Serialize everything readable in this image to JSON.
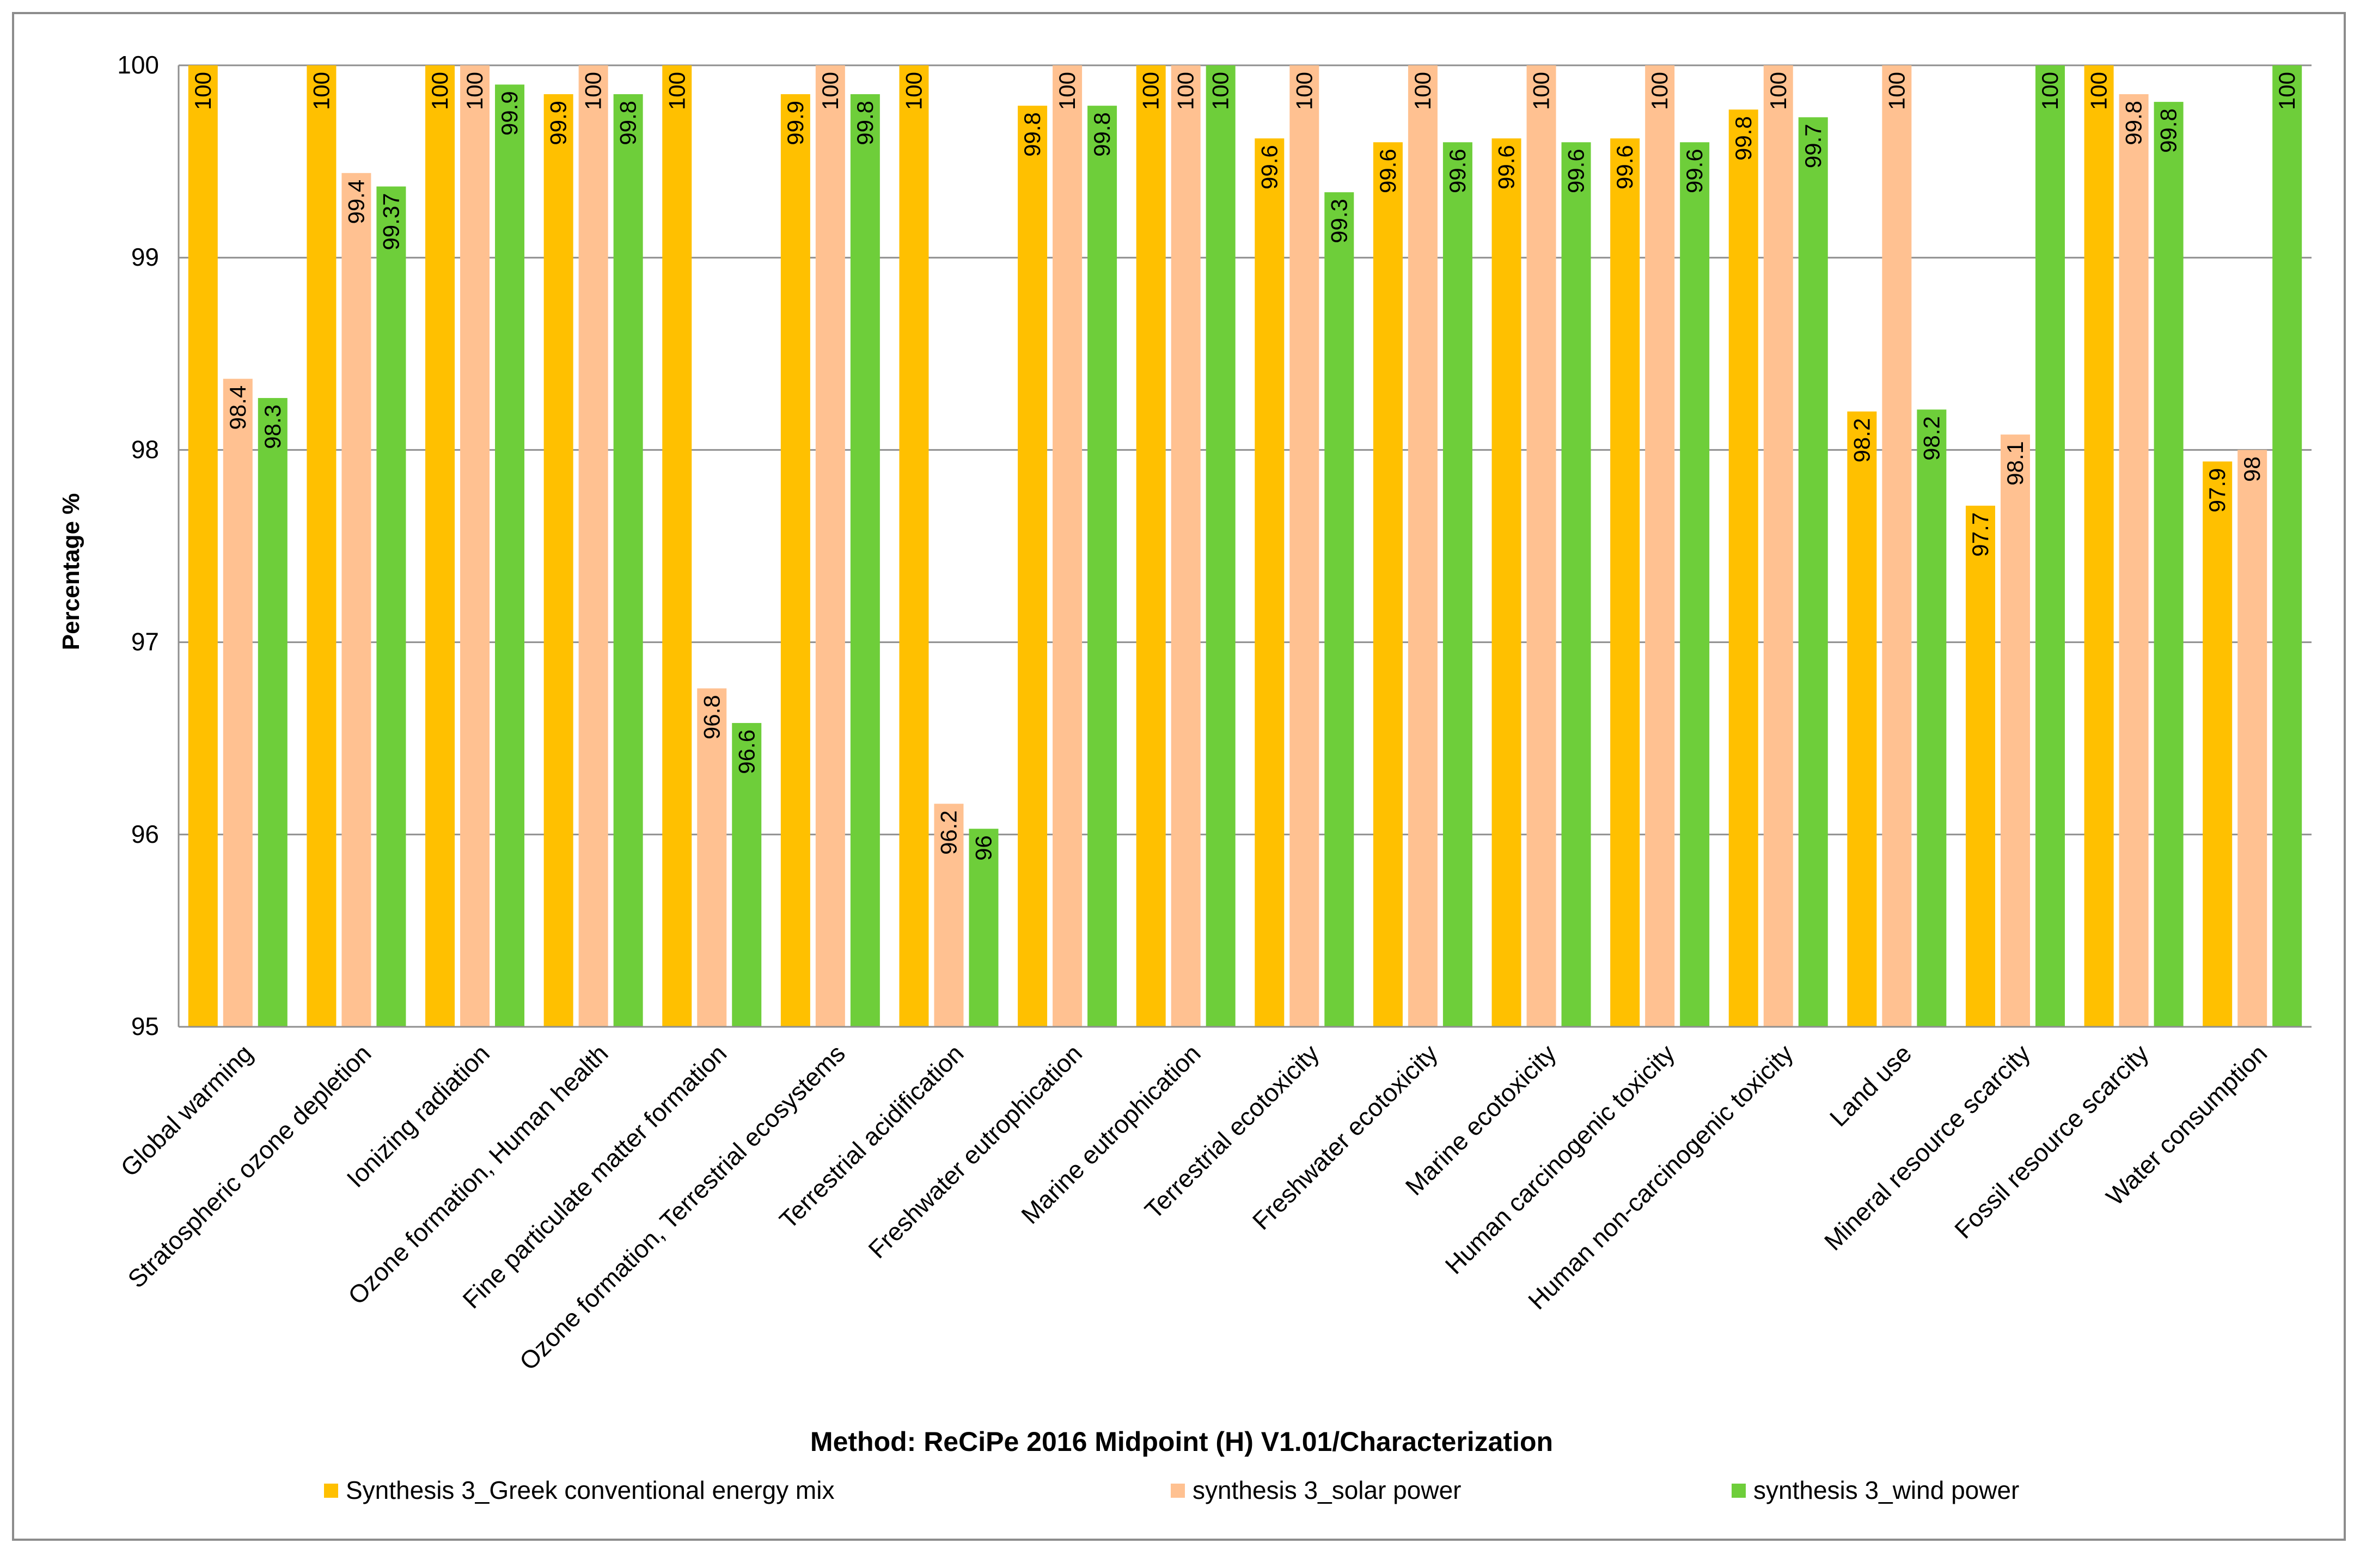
{
  "chart_data": {
    "type": "bar",
    "title": "",
    "xlabel": "Method: ReCiPe 2016 Midpoint (H) V1.01/Characterization",
    "ylabel": "Percentage %",
    "ylim": [
      95,
      100
    ],
    "yticks": [
      95,
      96,
      97,
      98,
      99,
      100
    ],
    "grid": true,
    "legend_position": "bottom",
    "categories": [
      "Global warming",
      "Stratospheric ozone depletion",
      "Ionizing radiation",
      "Ozone formation, Human health",
      "Fine particulate matter formation",
      "Ozone formation, Terrestrial ecosystems",
      "Terrestrial acidification",
      "Freshwater eutrophication",
      "Marine eutrophication",
      "Terrestrial ecotoxicity",
      "Freshwater ecotoxicity",
      "Marine ecotoxicity",
      "Human carcinogenic toxicity",
      "Human non-carcinogenic toxicity",
      "Land use",
      "Mineral resource scarcity",
      "Fossil resource scarcity",
      "Water consumption"
    ],
    "series": [
      {
        "name": "Synthesis 3_Greek conventional energy mix",
        "color": "#FFC000",
        "values": [
          100,
          100,
          100,
          99.85,
          100,
          99.85,
          100,
          99.79,
          100,
          99.62,
          99.6,
          99.62,
          99.62,
          99.77,
          98.2,
          97.71,
          100,
          97.94
        ],
        "labels": [
          "100",
          "100",
          "100",
          "99.9",
          "100",
          "99.9",
          "100",
          "99.8",
          "100",
          "99.6",
          "99.6",
          "99.6",
          "99.6",
          "99.8",
          "98.2",
          "97.7",
          "100",
          "97.9"
        ]
      },
      {
        "name": "synthesis 3_solar power",
        "color": "#FFC191",
        "values": [
          98.37,
          99.44,
          100,
          100,
          96.76,
          100,
          96.16,
          100,
          100,
          100,
          100,
          100,
          100,
          100,
          100,
          98.08,
          99.85,
          98.0
        ],
        "labels": [
          "98.4",
          "99.4",
          "100",
          "100",
          "96.8",
          "100",
          "96.2",
          "100",
          "100",
          "100",
          "100",
          "100",
          "100",
          "100",
          "100",
          "98.1",
          "99.8",
          "98"
        ]
      },
      {
        "name": "synthesis 3_wind power",
        "color": "#6ECE3A",
        "values": [
          98.27,
          99.37,
          99.9,
          99.85,
          96.58,
          99.85,
          96.03,
          99.79,
          100,
          99.34,
          99.6,
          99.6,
          99.6,
          99.73,
          98.21,
          100,
          99.81,
          100
        ],
        "labels": [
          "98.3",
          "99.37",
          "99.9",
          "99.8",
          "96.6",
          "99.8",
          "96",
          "99.8",
          "100",
          "99.3",
          "99.6",
          "99.6",
          "99.6",
          "99.7",
          "98.2",
          "100",
          "99.8",
          "100"
        ]
      }
    ]
  }
}
